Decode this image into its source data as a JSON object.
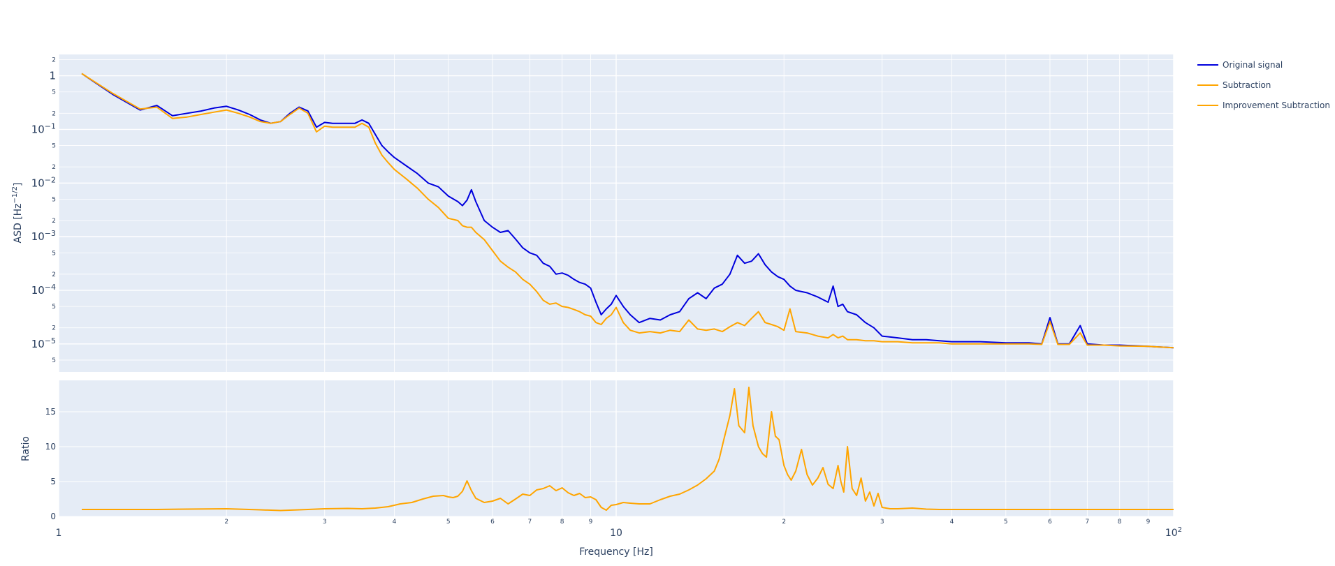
{
  "chart_data": [
    {
      "type": "line",
      "panel": "top",
      "ylabel": "ASD [Hz^-1/2]",
      "ylabel_main": "ASD [",
      "ylabel_unit_base": "Hz",
      "ylabel_unit_exp": "−1/2",
      "ylabel_close": "]",
      "xscale": "log",
      "yscale": "log",
      "xlim": [
        1,
        100
      ],
      "ylim": [
        3e-06,
        2.5
      ],
      "grid": true,
      "major_ticks": [
        {
          "value": 1,
          "base": "1",
          "exp": ""
        },
        {
          "value": 0.1,
          "base": "10",
          "exp": "−1"
        },
        {
          "value": 0.01,
          "base": "10",
          "exp": "−2"
        },
        {
          "value": 0.001,
          "base": "10",
          "exp": "−3"
        },
        {
          "value": 0.0001,
          "base": "10",
          "exp": "−4"
        },
        {
          "value": 1e-05,
          "base": "10",
          "exp": "−5"
        }
      ],
      "minor_ticks": [
        {
          "value": 2,
          "label": "2"
        },
        {
          "value": 0.5,
          "label": "5"
        },
        {
          "value": 0.2,
          "label": "2"
        },
        {
          "value": 0.05,
          "label": "5"
        },
        {
          "value": 0.02,
          "label": "2"
        },
        {
          "value": 0.005,
          "label": "5"
        },
        {
          "value": 0.002,
          "label": "2"
        },
        {
          "value": 0.0005,
          "label": "5"
        },
        {
          "value": 0.0002,
          "label": "2"
        },
        {
          "value": 5e-05,
          "label": "5"
        },
        {
          "value": 2e-05,
          "label": "2"
        },
        {
          "value": 5e-06,
          "label": "5"
        }
      ],
      "series": [
        {
          "name": "Original signal",
          "color": "#0000dd",
          "x": [
            1.1,
            1.25,
            1.4,
            1.5,
            1.6,
            1.7,
            1.8,
            1.9,
            2.0,
            2.1,
            2.2,
            2.3,
            2.4,
            2.5,
            2.6,
            2.7,
            2.8,
            2.9,
            3.0,
            3.1,
            3.2,
            3.3,
            3.4,
            3.5,
            3.6,
            3.7,
            3.8,
            3.9,
            4.0,
            4.2,
            4.4,
            4.6,
            4.8,
            5.0,
            5.2,
            5.3,
            5.4,
            5.5,
            5.6,
            5.8,
            6.0,
            6.2,
            6.4,
            6.6,
            6.8,
            7.0,
            7.2,
            7.4,
            7.6,
            7.8,
            8.0,
            8.2,
            8.4,
            8.6,
            8.8,
            9.0,
            9.2,
            9.4,
            9.6,
            9.8,
            10.0,
            10.3,
            10.6,
            11.0,
            11.5,
            12.0,
            12.5,
            13.0,
            13.5,
            14.0,
            14.5,
            15.0,
            15.5,
            16.0,
            16.5,
            17.0,
            17.5,
            18.0,
            18.5,
            19.0,
            19.5,
            20.0,
            20.5,
            21.0,
            22.0,
            23.0,
            24.0,
            24.5,
            25.0,
            25.5,
            26.0,
            27.0,
            28.0,
            29.0,
            30.0,
            32.0,
            34.0,
            36.0,
            38.0,
            40.0,
            45.0,
            50.0,
            55.0,
            58.0,
            60.0,
            62.0,
            65.0,
            68.0,
            70.0,
            75.0,
            80.0,
            90.0,
            100.0
          ],
          "y": [
            1.1,
            0.45,
            0.23,
            0.28,
            0.18,
            0.2,
            0.22,
            0.25,
            0.27,
            0.23,
            0.19,
            0.15,
            0.13,
            0.14,
            0.2,
            0.26,
            0.22,
            0.11,
            0.135,
            0.13,
            0.13,
            0.13,
            0.13,
            0.15,
            0.13,
            0.08,
            0.05,
            0.038,
            0.03,
            0.021,
            0.015,
            0.01,
            0.0085,
            0.0057,
            0.0045,
            0.0038,
            0.0048,
            0.0075,
            0.0045,
            0.002,
            0.0015,
            0.0012,
            0.0013,
            0.0009,
            0.00062,
            0.0005,
            0.00045,
            0.00032,
            0.00028,
            0.0002,
            0.00021,
            0.00019,
            0.00016,
            0.00014,
            0.00013,
            0.00011,
            6e-05,
            3.5e-05,
            4.5e-05,
            5.5e-05,
            8e-05,
            5e-05,
            3.5e-05,
            2.5e-05,
            3e-05,
            2.8e-05,
            3.5e-05,
            4e-05,
            7e-05,
            9e-05,
            7e-05,
            0.00011,
            0.00013,
            0.0002,
            0.00045,
            0.00032,
            0.00035,
            0.00048,
            0.0003,
            0.00022,
            0.00018,
            0.00016,
            0.00012,
            0.0001,
            9e-05,
            7.5e-05,
            6e-05,
            0.00012,
            5e-05,
            5.5e-05,
            4e-05,
            3.5e-05,
            2.5e-05,
            2e-05,
            1.4e-05,
            1.3e-05,
            1.2e-05,
            1.2e-05,
            1.15e-05,
            1.1e-05,
            1.1e-05,
            1.05e-05,
            1.05e-05,
            1e-05,
            3.1e-05,
            1e-05,
            1e-05,
            2.2e-05,
            1e-05,
            9.5e-06,
            9.5e-06,
            9e-06,
            8.5e-06
          ]
        },
        {
          "name": "Subtraction",
          "color": "#ffa500",
          "x": [
            1.1,
            1.25,
            1.4,
            1.5,
            1.6,
            1.7,
            1.8,
            1.9,
            2.0,
            2.1,
            2.2,
            2.3,
            2.4,
            2.5,
            2.6,
            2.7,
            2.8,
            2.9,
            3.0,
            3.1,
            3.2,
            3.3,
            3.4,
            3.5,
            3.6,
            3.7,
            3.8,
            3.9,
            4.0,
            4.2,
            4.4,
            4.6,
            4.8,
            5.0,
            5.2,
            5.3,
            5.4,
            5.5,
            5.6,
            5.8,
            6.0,
            6.2,
            6.4,
            6.6,
            6.8,
            7.0,
            7.2,
            7.4,
            7.6,
            7.8,
            8.0,
            8.2,
            8.4,
            8.6,
            8.8,
            9.0,
            9.2,
            9.4,
            9.6,
            9.8,
            10.0,
            10.3,
            10.6,
            11.0,
            11.5,
            12.0,
            12.5,
            13.0,
            13.5,
            14.0,
            14.5,
            15.0,
            15.5,
            16.0,
            16.5,
            17.0,
            17.5,
            18.0,
            18.5,
            19.0,
            19.5,
            20.0,
            20.5,
            21.0,
            22.0,
            23.0,
            24.0,
            24.5,
            25.0,
            25.5,
            26.0,
            27.0,
            28.0,
            29.0,
            30.0,
            32.0,
            34.0,
            36.0,
            38.0,
            40.0,
            45.0,
            50.0,
            55.0,
            58.0,
            60.0,
            62.0,
            65.0,
            68.0,
            70.0,
            75.0,
            80.0,
            90.0,
            100.0
          ],
          "y": [
            1.1,
            0.47,
            0.24,
            0.26,
            0.16,
            0.17,
            0.19,
            0.21,
            0.23,
            0.2,
            0.17,
            0.14,
            0.13,
            0.14,
            0.19,
            0.25,
            0.2,
            0.09,
            0.115,
            0.11,
            0.11,
            0.11,
            0.11,
            0.13,
            0.11,
            0.055,
            0.033,
            0.024,
            0.018,
            0.012,
            0.008,
            0.005,
            0.0035,
            0.0022,
            0.002,
            0.0016,
            0.0015,
            0.0015,
            0.0012,
            0.00088,
            0.00055,
            0.00035,
            0.00027,
            0.00022,
            0.00016,
            0.00013,
            9.5e-05,
            6.5e-05,
            5.5e-05,
            5.8e-05,
            5e-05,
            4.8e-05,
            4.4e-05,
            4e-05,
            3.5e-05,
            3.3e-05,
            2.5e-05,
            2.3e-05,
            3e-05,
            3.5e-05,
            4.8e-05,
            2.5e-05,
            1.8e-05,
            1.6e-05,
            1.7e-05,
            1.6e-05,
            1.8e-05,
            1.7e-05,
            2.8e-05,
            1.9e-05,
            1.8e-05,
            1.9e-05,
            1.7e-05,
            2.1e-05,
            2.5e-05,
            2.2e-05,
            3e-05,
            4e-05,
            2.5e-05,
            2.3e-05,
            2.1e-05,
            1.8e-05,
            4.5e-05,
            1.7e-05,
            1.6e-05,
            1.4e-05,
            1.3e-05,
            1.5e-05,
            1.3e-05,
            1.4e-05,
            1.2e-05,
            1.2e-05,
            1.15e-05,
            1.15e-05,
            1.1e-05,
            1.1e-05,
            1.05e-05,
            1.05e-05,
            1.05e-05,
            1e-05,
            1e-05,
            1e-05,
            1e-05,
            9.8e-06,
            2.6e-05,
            9.8e-06,
            9.8e-06,
            1.6e-05,
            9.5e-06,
            9.5e-06,
            9.2e-06,
            9e-06,
            8.5e-06
          ]
        }
      ]
    },
    {
      "type": "line",
      "panel": "bottom",
      "xlabel": "Frequency [Hz]",
      "ylabel": "Ratio",
      "xscale": "log",
      "yscale": "linear",
      "xlim": [
        1,
        100
      ],
      "ylim": [
        0,
        19.5
      ],
      "grid": true,
      "y_ticks": [
        {
          "value": 0,
          "label": "0"
        },
        {
          "value": 5,
          "label": "5"
        },
        {
          "value": 10,
          "label": "10"
        },
        {
          "value": 15,
          "label": "15"
        }
      ],
      "x_major_ticks": [
        {
          "value": 1,
          "base": "1",
          "exp": ""
        },
        {
          "value": 10,
          "base": "10",
          "exp": ""
        },
        {
          "value": 100,
          "base": "10",
          "exp": "2"
        }
      ],
      "x_minor_ticks": [
        {
          "value": 2,
          "label": "2"
        },
        {
          "value": 3,
          "label": "3"
        },
        {
          "value": 4,
          "label": "4"
        },
        {
          "value": 5,
          "label": "5"
        },
        {
          "value": 6,
          "label": "6"
        },
        {
          "value": 7,
          "label": "7"
        },
        {
          "value": 8,
          "label": "8"
        },
        {
          "value": 9,
          "label": "9"
        },
        {
          "value": 20,
          "label": "2"
        },
        {
          "value": 30,
          "label": "3"
        },
        {
          "value": 40,
          "label": "4"
        },
        {
          "value": 50,
          "label": "5"
        },
        {
          "value": 60,
          "label": "6"
        },
        {
          "value": 70,
          "label": "7"
        },
        {
          "value": 80,
          "label": "8"
        },
        {
          "value": 90,
          "label": "9"
        }
      ],
      "series": [
        {
          "name": "Improvement Subtraction",
          "color": "#ffa500",
          "x": [
            1.1,
            1.5,
            1.7,
            2.0,
            2.3,
            2.5,
            2.8,
            3.0,
            3.3,
            3.5,
            3.7,
            3.9,
            4.1,
            4.3,
            4.5,
            4.7,
            4.9,
            5.0,
            5.1,
            5.2,
            5.3,
            5.4,
            5.5,
            5.6,
            5.8,
            6.0,
            6.2,
            6.4,
            6.6,
            6.8,
            7.0,
            7.2,
            7.4,
            7.6,
            7.8,
            8.0,
            8.2,
            8.4,
            8.6,
            8.8,
            9.0,
            9.2,
            9.4,
            9.6,
            9.8,
            10.0,
            10.3,
            10.6,
            11.0,
            11.5,
            12.0,
            12.5,
            13.0,
            13.5,
            14.0,
            14.5,
            15.0,
            15.3,
            15.6,
            16.0,
            16.3,
            16.6,
            17.0,
            17.3,
            17.6,
            18.0,
            18.3,
            18.6,
            19.0,
            19.3,
            19.6,
            20.0,
            20.3,
            20.6,
            21.0,
            21.5,
            22.0,
            22.5,
            23.0,
            23.5,
            24.0,
            24.5,
            25.0,
            25.3,
            25.6,
            26.0,
            26.5,
            27.0,
            27.5,
            28.0,
            28.5,
            29.0,
            29.5,
            30.0,
            31.0,
            32.0,
            34.0,
            36.0,
            38.0,
            40.0,
            45.0,
            50.0,
            60.0,
            70.0,
            80.0,
            90.0,
            100.0
          ],
          "y": [
            1.0,
            1.0,
            1.05,
            1.1,
            0.95,
            0.85,
            1.0,
            1.1,
            1.15,
            1.1,
            1.2,
            1.4,
            1.8,
            2.0,
            2.5,
            2.9,
            3.0,
            2.8,
            2.7,
            2.9,
            3.6,
            5.1,
            3.7,
            2.6,
            2.0,
            2.2,
            2.6,
            1.8,
            2.5,
            3.2,
            3.0,
            3.8,
            4.0,
            4.4,
            3.7,
            4.1,
            3.4,
            3.0,
            3.3,
            2.7,
            2.8,
            2.4,
            1.3,
            0.9,
            1.6,
            1.7,
            2.0,
            1.9,
            1.8,
            1.8,
            2.4,
            2.9,
            3.2,
            3.8,
            4.5,
            5.4,
            6.5,
            8.2,
            11.0,
            14.5,
            18.3,
            13.0,
            12.0,
            18.5,
            13.0,
            10.0,
            9.0,
            8.5,
            15.0,
            11.5,
            11.0,
            7.3,
            6.0,
            5.2,
            6.5,
            9.6,
            6.0,
            4.5,
            5.5,
            7.0,
            4.6,
            4.0,
            7.3,
            5.0,
            3.5,
            10.0,
            4.0,
            3.0,
            5.5,
            2.2,
            3.5,
            1.5,
            3.3,
            1.3,
            1.1,
            1.1,
            1.2,
            1.05,
            1.0,
            1.0,
            1.0,
            1.0,
            1.0,
            1.0,
            1.0,
            1.0,
            1.0
          ]
        }
      ]
    }
  ],
  "legend": {
    "placement": "top-right",
    "items": [
      {
        "label": "Original signal",
        "color": "#0000dd"
      },
      {
        "label": "Subtraction",
        "color": "#ffa500"
      },
      {
        "label": "Improvement Subtraction",
        "color": "#ffa500"
      }
    ]
  }
}
